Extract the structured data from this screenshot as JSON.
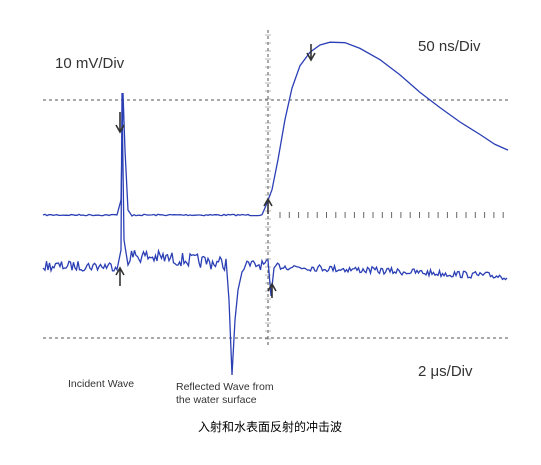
{
  "labels": {
    "vertical_scale": "10 mV/Div",
    "time_scale_top": "50 ns/Div",
    "time_scale_bottom": "2 μs/Div",
    "incident": "Incident Wave",
    "reflected": [
      "Reflected Wave from",
      "the water surface"
    ]
  },
  "caption": "入射和水表面反射的冲击波"
}
